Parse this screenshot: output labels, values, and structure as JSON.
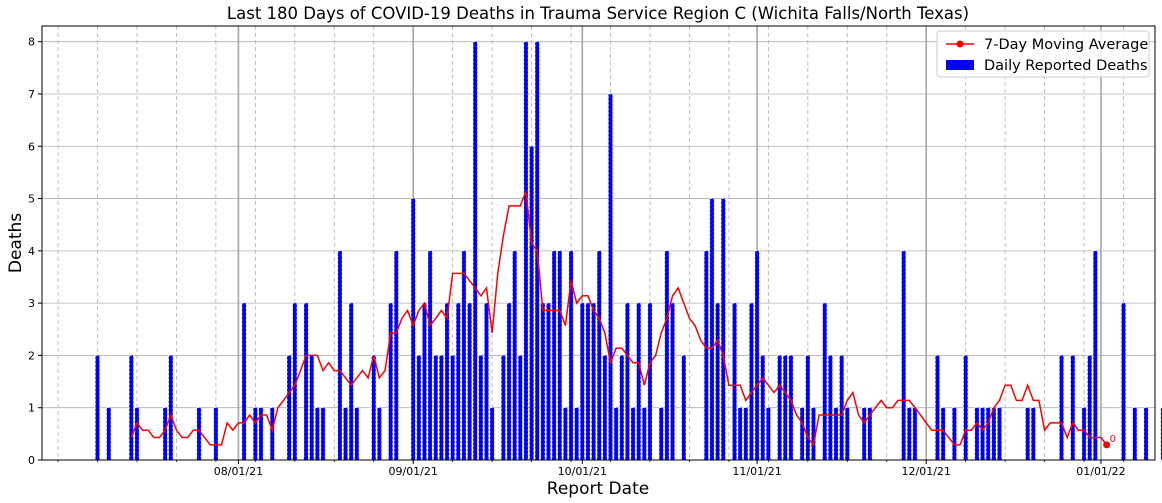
{
  "chart_data": {
    "type": "bar",
    "title": "Last 180 Days of COVID-19 Deaths in Trauma Service Region C (Wichita Falls/North Texas)",
    "xlabel": "Report Date",
    "ylabel": "Deaths",
    "ylim": [
      0,
      8.3
    ],
    "yticks": [
      0,
      1,
      2,
      3,
      4,
      5,
      6,
      7,
      8
    ],
    "xticks": [
      {
        "label": "08/01/21",
        "index": 25
      },
      {
        "label": "09/01/21",
        "index": 56
      },
      {
        "label": "10/01/21",
        "index": 86
      },
      {
        "label": "11/01/21",
        "index": 117
      },
      {
        "label": "12/01/21",
        "index": 147
      },
      {
        "label": "01/01/22",
        "index": 178
      }
    ],
    "start_date": "2021-07-07",
    "legend": {
      "position": "upper right",
      "entries": [
        {
          "label": "7-Day Moving Average",
          "color": "#ff0000",
          "kind": "line"
        },
        {
          "label": "Daily Reported Deaths",
          "color": "#0000ff",
          "kind": "bar"
        }
      ]
    },
    "grid": true,
    "last_point_annotation": "0",
    "series": [
      {
        "name": "Daily Reported Deaths",
        "color": "#0000ff",
        "values": [
          2,
          0,
          1,
          0,
          0,
          0,
          2,
          1,
          0,
          0,
          0,
          0,
          1,
          2,
          0,
          0,
          0,
          0,
          1,
          0,
          0,
          1,
          0,
          0,
          0,
          0,
          3,
          0,
          1,
          1,
          0,
          1,
          0,
          0,
          2,
          3,
          0,
          3,
          2,
          1,
          1,
          0,
          0,
          4,
          1,
          3,
          1,
          0,
          0,
          2,
          1,
          0,
          3,
          4,
          0,
          0,
          5,
          2,
          3,
          4,
          2,
          2,
          3,
          2,
          3,
          4,
          3,
          8,
          2,
          3,
          1,
          0,
          2,
          3,
          4,
          2,
          8,
          6,
          8,
          3,
          3,
          4,
          4,
          1,
          4,
          1,
          3,
          3,
          3,
          4,
          2,
          7,
          1,
          2,
          3,
          1,
          3,
          1,
          3,
          0,
          1,
          4,
          3,
          0,
          2,
          0,
          0,
          0,
          4,
          5,
          3,
          5,
          0,
          3,
          1,
          1,
          3,
          4,
          2,
          1,
          0,
          2,
          2,
          2,
          0,
          1,
          2,
          1,
          0,
          3,
          2,
          1,
          2,
          1,
          0,
          0,
          1,
          1,
          0,
          0,
          0,
          0,
          0,
          4,
          1,
          1,
          0,
          0,
          0,
          2,
          1,
          0,
          1,
          0,
          2,
          0,
          1,
          1,
          1,
          1,
          1,
          0,
          0,
          0,
          0,
          1,
          1,
          0,
          0,
          0,
          0,
          2,
          0,
          2,
          0,
          1,
          2,
          4,
          0,
          0,
          0,
          0,
          3,
          0,
          1,
          0,
          1,
          0,
          0,
          1,
          2,
          0,
          0,
          0,
          0
        ],
        "note": "index 0 = 2021-07-07"
      },
      {
        "name": "7-Day Moving Average",
        "color": "#ff0000",
        "start_index": 6,
        "values": [
          0.43,
          0.71,
          0.57,
          0.57,
          0.43,
          0.43,
          0.57,
          0.86,
          0.57,
          0.43,
          0.43,
          0.57,
          0.57,
          0.43,
          0.29,
          0.29,
          0.29,
          0.71,
          0.57,
          0.71,
          0.71,
          0.86,
          0.71,
          0.86,
          0.86,
          0.57,
          1.0,
          1.14,
          1.29,
          1.43,
          1.71,
          2.0,
          2.0,
          2.0,
          1.71,
          1.86,
          1.71,
          1.71,
          1.57,
          1.43,
          1.57,
          1.71,
          1.57,
          2.0,
          1.57,
          1.71,
          2.43,
          2.43,
          2.71,
          2.86,
          2.57,
          2.86,
          3.0,
          2.57,
          2.71,
          2.86,
          2.71,
          3.57,
          3.57,
          3.57,
          3.43,
          3.29,
          3.14,
          3.29,
          2.43,
          3.57,
          4.29,
          4.86,
          4.86,
          4.86,
          5.14,
          4.14,
          4.0,
          2.86,
          2.86,
          2.86,
          2.86,
          2.57,
          3.43,
          3.0,
          3.14,
          3.14,
          2.86,
          2.71,
          2.43,
          1.86,
          2.14,
          2.14,
          2.0,
          1.86,
          1.86,
          1.43,
          1.86,
          2.0,
          2.43,
          2.71,
          3.14,
          3.29,
          3.0,
          2.71,
          2.57,
          2.29,
          2.14,
          2.14,
          2.29,
          2.0,
          1.43,
          1.43,
          1.43,
          1.14,
          1.29,
          1.43,
          1.57,
          1.43,
          1.29,
          1.43,
          1.29,
          1.14,
          0.86,
          0.71,
          0.43,
          0.29,
          0.86,
          0.86,
          0.86,
          0.86,
          0.86,
          1.14,
          1.29,
          0.86,
          0.71,
          0.86,
          1.0,
          1.14,
          1.0,
          1.0,
          1.14,
          1.14,
          1.14,
          1.0,
          0.86,
          0.71,
          0.57,
          0.57,
          0.57,
          0.43,
          0.29,
          0.29,
          0.57,
          0.57,
          0.71,
          0.57,
          0.71,
          1.0,
          1.14,
          1.43,
          1.43,
          1.14,
          1.14,
          1.43,
          1.14,
          1.14,
          0.57,
          0.71,
          0.71,
          0.71,
          0.43,
          0.71,
          0.57,
          0.57,
          0.43,
          0.43,
          0.43,
          0.29
        ]
      }
    ]
  }
}
